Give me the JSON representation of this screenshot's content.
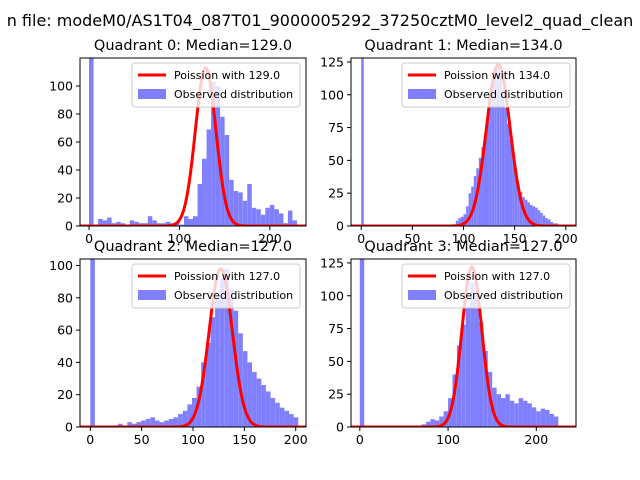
{
  "suptitle": "n file: modeM0/AS1T04_087T01_9000005292_37250cztM0_level2_quad_clean",
  "colors": {
    "hist": "#8080ff",
    "fit": "#ff0000",
    "edge": "#000000"
  },
  "chart_data": [
    {
      "type": "bar",
      "title": "Quadrant 0: Median=129.0",
      "xlim": [
        -10,
        240
      ],
      "ylim": [
        0,
        120
      ],
      "xticks": [
        0,
        100,
        200
      ],
      "yticks": [
        0,
        20,
        40,
        60,
        80,
        100
      ],
      "legend_position": "top-right",
      "series": [
        {
          "name": "Poission with 129.0",
          "kind": "line",
          "mean": 129.0,
          "peak": 113
        },
        {
          "name": "Observed distribution",
          "kind": "hist",
          "bin_width": 5,
          "bins": [
            [
              0,
              120
            ],
            [
              10,
              5
            ],
            [
              15,
              4
            ],
            [
              20,
              6
            ],
            [
              25,
              2
            ],
            [
              30,
              3
            ],
            [
              35,
              2
            ],
            [
              40,
              1
            ],
            [
              45,
              4
            ],
            [
              50,
              3
            ],
            [
              55,
              2
            ],
            [
              60,
              2
            ],
            [
              65,
              7
            ],
            [
              70,
              4
            ],
            [
              75,
              2
            ],
            [
              80,
              2
            ],
            [
              85,
              3
            ],
            [
              90,
              2
            ],
            [
              95,
              3
            ],
            [
              100,
              1
            ],
            [
              105,
              7
            ],
            [
              110,
              5
            ],
            [
              115,
              7
            ],
            [
              120,
              30
            ],
            [
              125,
              48
            ],
            [
              130,
              69
            ],
            [
              135,
              103
            ],
            [
              140,
              100
            ],
            [
              145,
              78
            ],
            [
              150,
              65
            ],
            [
              155,
              33
            ],
            [
              160,
              25
            ],
            [
              165,
              24
            ],
            [
              170,
              18
            ],
            [
              175,
              30
            ],
            [
              180,
              13
            ],
            [
              185,
              12
            ],
            [
              190,
              8
            ],
            [
              195,
              13
            ],
            [
              200,
              15
            ],
            [
              205,
              12
            ],
            [
              210,
              9
            ],
            [
              215,
              2
            ],
            [
              220,
              11
            ],
            [
              225,
              4
            ]
          ]
        }
      ]
    },
    {
      "type": "bar",
      "title": "Quadrant 1: Median=134.0",
      "xlim": [
        -10,
        210
      ],
      "ylim": [
        0,
        128
      ],
      "xticks": [
        0,
        50,
        100,
        150,
        200
      ],
      "yticks": [
        0,
        25,
        50,
        75,
        100,
        125
      ],
      "legend_position": "top-right",
      "series": [
        {
          "name": "Poission with 134.0",
          "kind": "line",
          "mean": 134.0,
          "peak": 123
        },
        {
          "name": "Observed distribution",
          "kind": "hist",
          "bin_width": 2.5,
          "bins": [
            [
              0,
              128
            ],
            [
              92.5,
              4
            ],
            [
              95,
              6
            ],
            [
              97.5,
              7
            ],
            [
              100,
              9
            ],
            [
              102.5,
              15
            ],
            [
              105,
              25
            ],
            [
              107.5,
              30
            ],
            [
              110,
              38
            ],
            [
              112.5,
              44
            ],
            [
              115,
              52
            ],
            [
              117.5,
              60
            ],
            [
              120,
              68
            ],
            [
              122.5,
              80
            ],
            [
              125,
              92
            ],
            [
              127.5,
              110
            ],
            [
              130,
              118
            ],
            [
              132.5,
              123
            ],
            [
              135,
              114
            ],
            [
              137.5,
              100
            ],
            [
              140,
              90
            ],
            [
              142.5,
              78
            ],
            [
              145,
              66
            ],
            [
              147.5,
              55
            ],
            [
              150,
              42
            ],
            [
              152.5,
              32
            ],
            [
              155,
              26
            ],
            [
              157.5,
              22
            ],
            [
              160,
              20
            ],
            [
              162.5,
              18
            ],
            [
              165,
              16
            ],
            [
              167.5,
              15
            ],
            [
              170,
              14
            ],
            [
              172.5,
              12
            ],
            [
              175,
              10
            ],
            [
              177.5,
              8
            ],
            [
              180,
              6
            ],
            [
              182.5,
              5
            ],
            [
              185,
              3
            ],
            [
              187.5,
              2
            ],
            [
              190,
              2
            ],
            [
              195,
              1
            ]
          ]
        }
      ]
    },
    {
      "type": "bar",
      "title": "Quadrant 2: Median=127.0",
      "xlim": [
        -10,
        210
      ],
      "ylim": [
        0,
        104
      ],
      "xticks": [
        0,
        50,
        100,
        150,
        200
      ],
      "yticks": [
        0,
        20,
        40,
        60,
        80,
        100
      ],
      "legend_position": "top-right",
      "series": [
        {
          "name": "Poission with 127.0",
          "kind": "line",
          "mean": 127.0,
          "peak": 98
        },
        {
          "name": "Observed distribution",
          "kind": "hist",
          "bin_width": 4.5,
          "bins": [
            [
              0,
              104
            ],
            [
              22.5,
              1
            ],
            [
              27,
              2
            ],
            [
              31.5,
              1
            ],
            [
              36,
              3
            ],
            [
              40.5,
              2
            ],
            [
              45,
              3
            ],
            [
              49.5,
              4
            ],
            [
              54,
              5
            ],
            [
              58.5,
              6
            ],
            [
              63,
              4
            ],
            [
              67.5,
              3
            ],
            [
              72,
              4
            ],
            [
              76.5,
              5
            ],
            [
              81,
              6
            ],
            [
              85.5,
              8
            ],
            [
              90,
              10
            ],
            [
              94.5,
              14
            ],
            [
              99,
              18
            ],
            [
              103.5,
              25
            ],
            [
              108,
              40
            ],
            [
              112.5,
              52
            ],
            [
              117,
              68
            ],
            [
              121.5,
              80
            ],
            [
              126,
              92
            ],
            [
              130.5,
              98
            ],
            [
              135,
              85
            ],
            [
              139.5,
              72
            ],
            [
              144,
              58
            ],
            [
              148.5,
              47
            ],
            [
              153,
              40
            ],
            [
              157.5,
              34
            ],
            [
              162,
              30
            ],
            [
              166.5,
              26
            ],
            [
              171,
              22
            ],
            [
              175.5,
              18
            ],
            [
              180,
              15
            ],
            [
              184.5,
              12
            ],
            [
              189,
              10
            ],
            [
              193.5,
              8
            ],
            [
              198,
              6
            ]
          ]
        }
      ]
    },
    {
      "type": "bar",
      "title": "Quadrant 3: Median=127.0",
      "xlim": [
        -10,
        245
      ],
      "ylim": [
        0,
        128
      ],
      "xticks": [
        0,
        100,
        200
      ],
      "yticks": [
        0,
        25,
        50,
        75,
        100,
        125
      ],
      "legend_position": "top-right",
      "series": [
        {
          "name": "Poission with 127.0",
          "kind": "line",
          "mean": 127.0,
          "peak": 122
        },
        {
          "name": "Observed distribution",
          "kind": "hist",
          "bin_width": 5,
          "bins": [
            [
              0,
              128
            ],
            [
              70,
              2
            ],
            [
              75,
              4
            ],
            [
              80,
              6
            ],
            [
              85,
              5
            ],
            [
              90,
              8
            ],
            [
              95,
              12
            ],
            [
              100,
              22
            ],
            [
              105,
              40
            ],
            [
              110,
              62
            ],
            [
              115,
              78
            ],
            [
              120,
              92
            ],
            [
              125,
              110
            ],
            [
              130,
              100
            ],
            [
              135,
              80
            ],
            [
              140,
              58
            ],
            [
              145,
              42
            ],
            [
              150,
              30
            ],
            [
              155,
              25
            ],
            [
              160,
              22
            ],
            [
              165,
              25
            ],
            [
              170,
              20
            ],
            [
              175,
              18
            ],
            [
              180,
              22
            ],
            [
              185,
              20
            ],
            [
              190,
              18
            ],
            [
              195,
              15
            ],
            [
              200,
              12
            ],
            [
              205,
              14
            ],
            [
              210,
              13
            ],
            [
              215,
              10
            ],
            [
              220,
              8
            ]
          ]
        }
      ]
    }
  ]
}
